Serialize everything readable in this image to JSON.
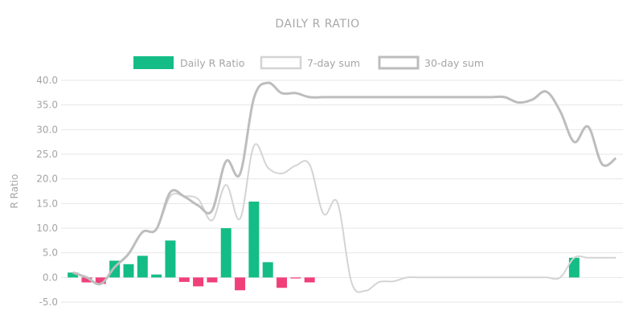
{
  "chart_data": {
    "type": "bar",
    "title": "DAILY R RATIO",
    "ylabel": "R Ratio",
    "xlabel": "",
    "ylim": [
      -5,
      40
    ],
    "yticks": [
      "-5.0",
      "0.0",
      "5.0",
      "10.0",
      "15.0",
      "20.0",
      "25.0",
      "30.0",
      "35.0",
      "40.0"
    ],
    "ytick_values": [
      -5,
      0,
      5,
      10,
      15,
      20,
      25,
      30,
      35,
      40
    ],
    "grid": true,
    "legend_position": "top",
    "legend": [
      "Daily R Ratio",
      "7-day sum",
      "30-day sum"
    ],
    "colors": {
      "positive": "#14bd86",
      "negative": "#f0407a",
      "seven_day": "#d4d4d4",
      "thirty_day": "#bdbdbd",
      "grid": "#e6e6e6"
    },
    "x_count": 40,
    "series": [
      {
        "name": "Daily R Ratio",
        "kind": "bar",
        "values": [
          1,
          -1,
          -1.3,
          3.4,
          2.7,
          4.4,
          0.6,
          7.5,
          -0.9,
          -1.8,
          -1,
          10,
          -2.6,
          15.4,
          3.1,
          -2.1,
          -0.2,
          -1,
          0,
          0,
          0,
          0,
          0,
          0,
          0,
          0,
          0,
          0,
          0,
          0,
          0,
          0,
          0,
          0,
          0,
          0,
          4,
          0,
          0,
          0
        ]
      },
      {
        "name": "7-day sum",
        "kind": "line",
        "values": [
          1,
          0,
          -1.3,
          2.1,
          4.8,
          9.2,
          9.8,
          16.5,
          16.5,
          15.9,
          11.6,
          18.8,
          11.9,
          26.7,
          22.3,
          21.1,
          22.7,
          22.9,
          12.9,
          15.2,
          -0.9,
          -2.7,
          -0.9,
          -0.8,
          0,
          0,
          0,
          0,
          0,
          0,
          0,
          0,
          0,
          0,
          0,
          0,
          4,
          4,
          4,
          4
        ]
      },
      {
        "name": "30-day sum",
        "kind": "line",
        "values": [
          1,
          0,
          -1.3,
          2.1,
          4.8,
          9.2,
          9.8,
          17.3,
          16.4,
          14.6,
          13.6,
          23.6,
          21.0,
          36.4,
          39.5,
          37.4,
          37.4,
          36.6,
          36.6,
          36.6,
          36.6,
          36.6,
          36.6,
          36.6,
          36.6,
          36.6,
          36.6,
          36.6,
          36.6,
          36.6,
          36.6,
          36.6,
          35.5,
          36.1,
          37.7,
          33.7,
          27.5,
          30.6,
          23.0,
          24.2
        ]
      }
    ]
  }
}
